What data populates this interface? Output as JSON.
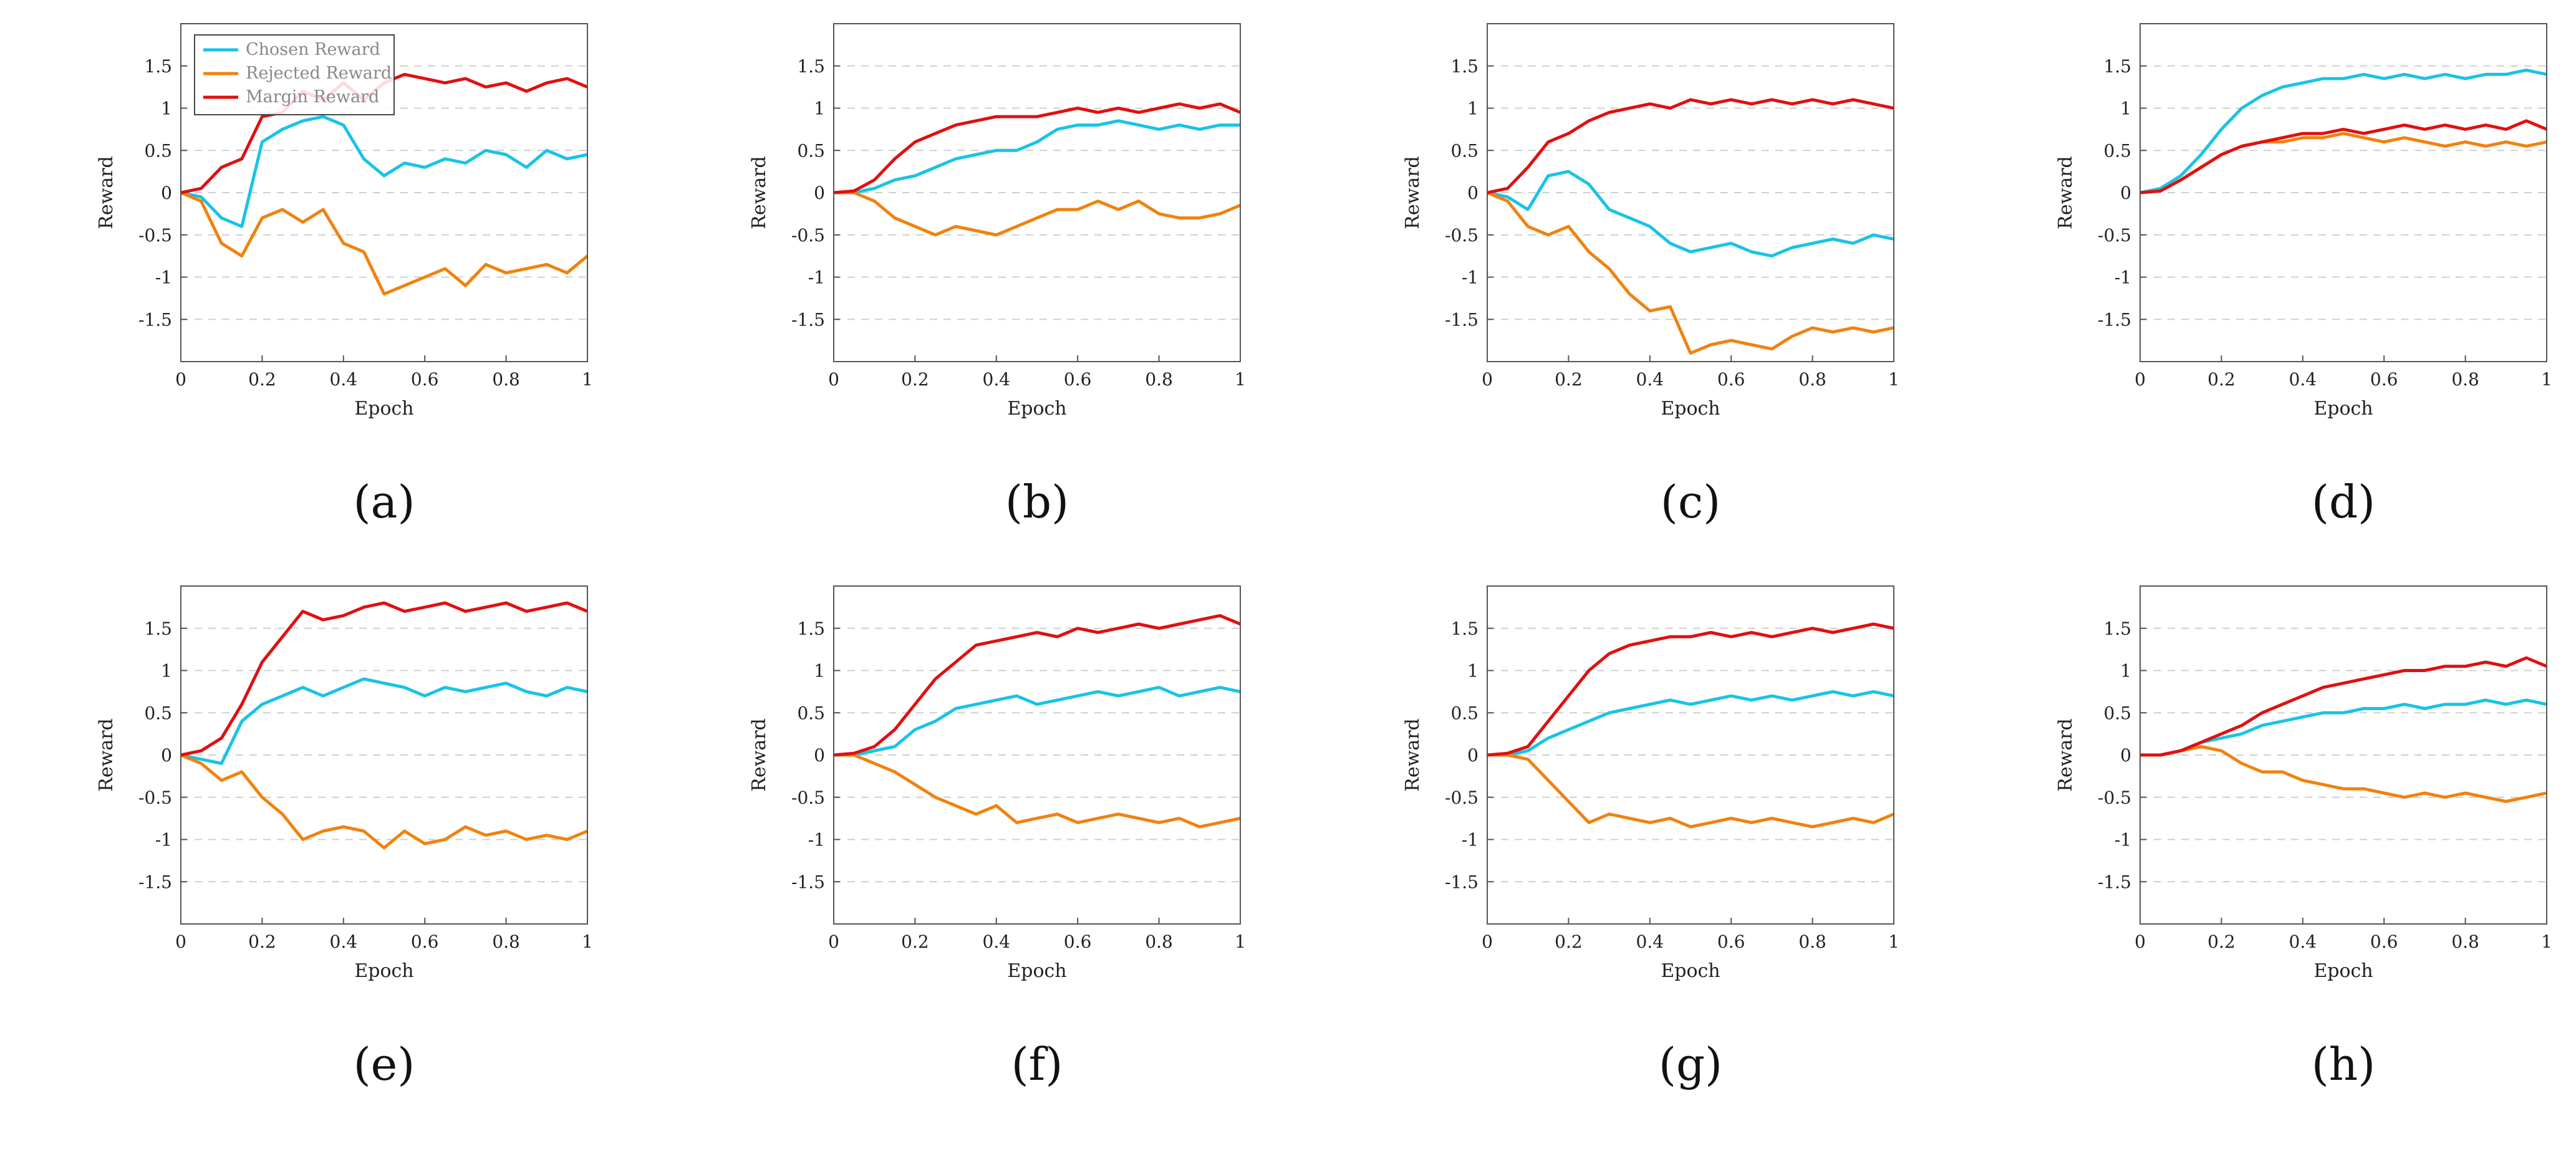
{
  "chart_data": [
    {
      "type": "line",
      "subfigure_label": "(a)",
      "xlabel": "Epoch",
      "ylabel": "Reward",
      "xlim": [
        0,
        1
      ],
      "ylim": [
        -2,
        2
      ],
      "xticks": [
        "0",
        "0.2",
        "0.4",
        "0.6",
        "0.8",
        "1"
      ],
      "yticks": [
        "-1.5",
        "-1",
        "-0.5",
        "0",
        "0.5",
        "1",
        "1.5"
      ],
      "grid": "horizontal dashed",
      "legend": "top-left",
      "x": [
        0,
        0.05,
        0.1,
        0.15,
        0.2,
        0.25,
        0.3,
        0.35,
        0.4,
        0.45,
        0.5,
        0.55,
        0.6,
        0.65,
        0.7,
        0.75,
        0.8,
        0.85,
        0.9,
        0.95,
        1.0
      ],
      "series": [
        {
          "name": "Chosen Reward",
          "color": "#19c3e6",
          "values": [
            0,
            -0.05,
            -0.3,
            -0.4,
            0.6,
            0.75,
            0.85,
            0.9,
            0.8,
            0.4,
            0.2,
            0.35,
            0.3,
            0.4,
            0.35,
            0.5,
            0.45,
            0.3,
            0.5,
            0.4,
            0.45
          ]
        },
        {
          "name": "Rejected Reward",
          "color": "#f0820f",
          "values": [
            0,
            -0.1,
            -0.6,
            -0.75,
            -0.3,
            -0.2,
            -0.35,
            -0.2,
            -0.6,
            -0.7,
            -1.2,
            -1.1,
            -1.0,
            -0.9,
            -1.1,
            -0.85,
            -0.95,
            -0.9,
            -0.85,
            -0.95,
            -0.75
          ]
        },
        {
          "name": "Margin Reward",
          "color": "#e01010",
          "values": [
            0,
            0.05,
            0.3,
            0.4,
            0.9,
            0.95,
            1.2,
            1.1,
            1.3,
            1.1,
            1.3,
            1.4,
            1.35,
            1.3,
            1.35,
            1.25,
            1.3,
            1.2,
            1.3,
            1.35,
            1.25
          ]
        }
      ]
    },
    {
      "type": "line",
      "subfigure_label": "(b)",
      "xlabel": "Epoch",
      "ylabel": "Reward",
      "xlim": [
        0,
        1
      ],
      "ylim": [
        -2,
        2
      ],
      "xticks": [
        "0",
        "0.2",
        "0.4",
        "0.6",
        "0.8",
        "1"
      ],
      "yticks": [
        "-1.5",
        "-1",
        "-0.5",
        "0",
        "0.5",
        "1",
        "1.5"
      ],
      "grid": "horizontal dashed",
      "x": [
        0,
        0.05,
        0.1,
        0.15,
        0.2,
        0.25,
        0.3,
        0.35,
        0.4,
        0.45,
        0.5,
        0.55,
        0.6,
        0.65,
        0.7,
        0.75,
        0.8,
        0.85,
        0.9,
        0.95,
        1.0
      ],
      "series": [
        {
          "name": "Chosen Reward",
          "color": "#19c3e6",
          "values": [
            0,
            0,
            0.05,
            0.15,
            0.2,
            0.3,
            0.4,
            0.45,
            0.5,
            0.5,
            0.6,
            0.75,
            0.8,
            0.8,
            0.85,
            0.8,
            0.75,
            0.8,
            0.75,
            0.8,
            0.8
          ]
        },
        {
          "name": "Rejected Reward",
          "color": "#f0820f",
          "values": [
            0,
            0,
            -0.1,
            -0.3,
            -0.4,
            -0.5,
            -0.4,
            -0.45,
            -0.5,
            -0.4,
            -0.3,
            -0.2,
            -0.2,
            -0.1,
            -0.2,
            -0.1,
            -0.25,
            -0.3,
            -0.3,
            -0.25,
            -0.15
          ]
        },
        {
          "name": "Margin Reward",
          "color": "#e01010",
          "values": [
            0,
            0.02,
            0.15,
            0.4,
            0.6,
            0.7,
            0.8,
            0.85,
            0.9,
            0.9,
            0.9,
            0.95,
            1.0,
            0.95,
            1.0,
            0.95,
            1.0,
            1.05,
            1.0,
            1.05,
            0.95
          ]
        }
      ]
    },
    {
      "type": "line",
      "subfigure_label": "(c)",
      "xlabel": "Epoch",
      "ylabel": "Reward",
      "xlim": [
        0,
        1
      ],
      "ylim": [
        -2,
        2
      ],
      "xticks": [
        "0",
        "0.2",
        "0.4",
        "0.6",
        "0.8",
        "1"
      ],
      "yticks": [
        "-1.5",
        "-1",
        "-0.5",
        "0",
        "0.5",
        "1",
        "1.5"
      ],
      "grid": "horizontal dashed",
      "x": [
        0,
        0.05,
        0.1,
        0.15,
        0.2,
        0.25,
        0.3,
        0.35,
        0.4,
        0.45,
        0.5,
        0.55,
        0.6,
        0.65,
        0.7,
        0.75,
        0.8,
        0.85,
        0.9,
        0.95,
        1.0
      ],
      "series": [
        {
          "name": "Chosen Reward",
          "color": "#19c3e6",
          "values": [
            0,
            -0.05,
            -0.2,
            0.2,
            0.25,
            0.1,
            -0.2,
            -0.3,
            -0.4,
            -0.6,
            -0.7,
            -0.65,
            -0.6,
            -0.7,
            -0.75,
            -0.65,
            -0.6,
            -0.55,
            -0.6,
            -0.5,
            -0.55
          ]
        },
        {
          "name": "Rejected Reward",
          "color": "#f0820f",
          "values": [
            0,
            -0.1,
            -0.4,
            -0.5,
            -0.4,
            -0.7,
            -0.9,
            -1.2,
            -1.4,
            -1.35,
            -1.9,
            -1.8,
            -1.75,
            -1.8,
            -1.85,
            -1.7,
            -1.6,
            -1.65,
            -1.6,
            -1.65,
            -1.6
          ]
        },
        {
          "name": "Margin Reward",
          "color": "#e01010",
          "values": [
            0,
            0.05,
            0.3,
            0.6,
            0.7,
            0.85,
            0.95,
            1.0,
            1.05,
            1.0,
            1.1,
            1.05,
            1.1,
            1.05,
            1.1,
            1.05,
            1.1,
            1.05,
            1.1,
            1.05,
            1.0
          ]
        }
      ]
    },
    {
      "type": "line",
      "subfigure_label": "(d)",
      "xlabel": "Epoch",
      "ylabel": "Reward",
      "xlim": [
        0,
        1
      ],
      "ylim": [
        -2,
        2
      ],
      "xticks": [
        "0",
        "0.2",
        "0.4",
        "0.6",
        "0.8",
        "1"
      ],
      "yticks": [
        "-1.5",
        "-1",
        "-0.5",
        "0",
        "0.5",
        "1",
        "1.5"
      ],
      "grid": "horizontal dashed",
      "x": [
        0,
        0.05,
        0.1,
        0.15,
        0.2,
        0.25,
        0.3,
        0.35,
        0.4,
        0.45,
        0.5,
        0.55,
        0.6,
        0.65,
        0.7,
        0.75,
        0.8,
        0.85,
        0.9,
        0.95,
        1.0
      ],
      "series": [
        {
          "name": "Chosen Reward",
          "color": "#19c3e6",
          "values": [
            0,
            0.05,
            0.2,
            0.45,
            0.75,
            1.0,
            1.15,
            1.25,
            1.3,
            1.35,
            1.35,
            1.4,
            1.35,
            1.4,
            1.35,
            1.4,
            1.35,
            1.4,
            1.4,
            1.45,
            1.4
          ]
        },
        {
          "name": "Rejected Reward",
          "color": "#f0820f",
          "values": [
            0,
            0.02,
            0.15,
            0.3,
            0.45,
            0.55,
            0.6,
            0.6,
            0.65,
            0.65,
            0.7,
            0.65,
            0.6,
            0.65,
            0.6,
            0.55,
            0.6,
            0.55,
            0.6,
            0.55,
            0.6
          ]
        },
        {
          "name": "Margin Reward",
          "color": "#e01010",
          "values": [
            0,
            0.02,
            0.15,
            0.3,
            0.45,
            0.55,
            0.6,
            0.65,
            0.7,
            0.7,
            0.75,
            0.7,
            0.75,
            0.8,
            0.75,
            0.8,
            0.75,
            0.8,
            0.75,
            0.85,
            0.75
          ]
        }
      ]
    },
    {
      "type": "line",
      "subfigure_label": "(e)",
      "xlabel": "Epoch",
      "ylabel": "Reward",
      "xlim": [
        0,
        1
      ],
      "ylim": [
        -2,
        2
      ],
      "xticks": [
        "0",
        "0.2",
        "0.4",
        "0.6",
        "0.8",
        "1"
      ],
      "yticks": [
        "-1.5",
        "-1",
        "-0.5",
        "0",
        "0.5",
        "1",
        "1.5"
      ],
      "grid": "horizontal dashed",
      "x": [
        0,
        0.05,
        0.1,
        0.15,
        0.2,
        0.25,
        0.3,
        0.35,
        0.4,
        0.45,
        0.5,
        0.55,
        0.6,
        0.65,
        0.7,
        0.75,
        0.8,
        0.85,
        0.9,
        0.95,
        1.0
      ],
      "series": [
        {
          "name": "Chosen Reward",
          "color": "#19c3e6",
          "values": [
            0,
            -0.05,
            -0.1,
            0.4,
            0.6,
            0.7,
            0.8,
            0.7,
            0.8,
            0.9,
            0.85,
            0.8,
            0.7,
            0.8,
            0.75,
            0.8,
            0.85,
            0.75,
            0.7,
            0.8,
            0.75
          ]
        },
        {
          "name": "Rejected Reward",
          "color": "#f0820f",
          "values": [
            0,
            -0.1,
            -0.3,
            -0.2,
            -0.5,
            -0.7,
            -1.0,
            -0.9,
            -0.85,
            -0.9,
            -1.1,
            -0.9,
            -1.05,
            -1.0,
            -0.85,
            -0.95,
            -0.9,
            -1.0,
            -0.95,
            -1.0,
            -0.9
          ]
        },
        {
          "name": "Margin Reward",
          "color": "#e01010",
          "values": [
            0,
            0.05,
            0.2,
            0.6,
            1.1,
            1.4,
            1.7,
            1.6,
            1.65,
            1.75,
            1.8,
            1.7,
            1.75,
            1.8,
            1.7,
            1.75,
            1.8,
            1.7,
            1.75,
            1.8,
            1.7
          ]
        }
      ]
    },
    {
      "type": "line",
      "subfigure_label": "(f)",
      "xlabel": "Epoch",
      "ylabel": "Reward",
      "xlim": [
        0,
        1
      ],
      "ylim": [
        -2,
        2
      ],
      "xticks": [
        "0",
        "0.2",
        "0.4",
        "0.6",
        "0.8",
        "1"
      ],
      "yticks": [
        "-1.5",
        "-1",
        "-0.5",
        "0",
        "0.5",
        "1",
        "1.5"
      ],
      "grid": "horizontal dashed",
      "x": [
        0,
        0.05,
        0.1,
        0.15,
        0.2,
        0.25,
        0.3,
        0.35,
        0.4,
        0.45,
        0.5,
        0.55,
        0.6,
        0.65,
        0.7,
        0.75,
        0.8,
        0.85,
        0.9,
        0.95,
        1.0
      ],
      "series": [
        {
          "name": "Chosen Reward",
          "color": "#19c3e6",
          "values": [
            0,
            0,
            0.05,
            0.1,
            0.3,
            0.4,
            0.55,
            0.6,
            0.65,
            0.7,
            0.6,
            0.65,
            0.7,
            0.75,
            0.7,
            0.75,
            0.8,
            0.7,
            0.75,
            0.8,
            0.75
          ]
        },
        {
          "name": "Rejected Reward",
          "color": "#f0820f",
          "values": [
            0,
            0,
            -0.1,
            -0.2,
            -0.35,
            -0.5,
            -0.6,
            -0.7,
            -0.6,
            -0.8,
            -0.75,
            -0.7,
            -0.8,
            -0.75,
            -0.7,
            -0.75,
            -0.8,
            -0.75,
            -0.85,
            -0.8,
            -0.75
          ]
        },
        {
          "name": "Margin Reward",
          "color": "#e01010",
          "values": [
            0,
            0.02,
            0.1,
            0.3,
            0.6,
            0.9,
            1.1,
            1.3,
            1.35,
            1.4,
            1.45,
            1.4,
            1.5,
            1.45,
            1.5,
            1.55,
            1.5,
            1.55,
            1.6,
            1.65,
            1.55
          ]
        }
      ]
    },
    {
      "type": "line",
      "subfigure_label": "(g)",
      "xlabel": "Epoch",
      "ylabel": "Reward",
      "xlim": [
        0,
        1
      ],
      "ylim": [
        -2,
        2
      ],
      "xticks": [
        "0",
        "0.2",
        "0.4",
        "0.6",
        "0.8",
        "1"
      ],
      "yticks": [
        "-1.5",
        "-1",
        "-0.5",
        "0",
        "0.5",
        "1",
        "1.5"
      ],
      "grid": "horizontal dashed",
      "x": [
        0,
        0.05,
        0.1,
        0.15,
        0.2,
        0.25,
        0.3,
        0.35,
        0.4,
        0.45,
        0.5,
        0.55,
        0.6,
        0.65,
        0.7,
        0.75,
        0.8,
        0.85,
        0.9,
        0.95,
        1.0
      ],
      "series": [
        {
          "name": "Chosen Reward",
          "color": "#19c3e6",
          "values": [
            0,
            0,
            0.05,
            0.2,
            0.3,
            0.4,
            0.5,
            0.55,
            0.6,
            0.65,
            0.6,
            0.65,
            0.7,
            0.65,
            0.7,
            0.65,
            0.7,
            0.75,
            0.7,
            0.75,
            0.7
          ]
        },
        {
          "name": "Rejected Reward",
          "color": "#f0820f",
          "values": [
            0,
            0,
            -0.05,
            -0.3,
            -0.55,
            -0.8,
            -0.7,
            -0.75,
            -0.8,
            -0.75,
            -0.85,
            -0.8,
            -0.75,
            -0.8,
            -0.75,
            -0.8,
            -0.85,
            -0.8,
            -0.75,
            -0.8,
            -0.7
          ]
        },
        {
          "name": "Margin Reward",
          "color": "#e01010",
          "values": [
            0,
            0.02,
            0.1,
            0.4,
            0.7,
            1.0,
            1.2,
            1.3,
            1.35,
            1.4,
            1.4,
            1.45,
            1.4,
            1.45,
            1.4,
            1.45,
            1.5,
            1.45,
            1.5,
            1.55,
            1.5
          ]
        }
      ]
    },
    {
      "type": "line",
      "subfigure_label": "(h)",
      "xlabel": "Epoch",
      "ylabel": "Reward",
      "xlim": [
        0,
        1
      ],
      "ylim": [
        -2,
        2
      ],
      "xticks": [
        "0",
        "0.2",
        "0.4",
        "0.6",
        "0.8",
        "1"
      ],
      "yticks": [
        "-1.5",
        "-1",
        "-0.5",
        "0",
        "0.5",
        "1",
        "1.5"
      ],
      "grid": "horizontal dashed",
      "x": [
        0,
        0.05,
        0.1,
        0.15,
        0.2,
        0.25,
        0.3,
        0.35,
        0.4,
        0.45,
        0.5,
        0.55,
        0.6,
        0.65,
        0.7,
        0.75,
        0.8,
        0.85,
        0.9,
        0.95,
        1.0
      ],
      "series": [
        {
          "name": "Chosen Reward",
          "color": "#19c3e6",
          "values": [
            0,
            0,
            0.05,
            0.15,
            0.2,
            0.25,
            0.35,
            0.4,
            0.45,
            0.5,
            0.5,
            0.55,
            0.55,
            0.6,
            0.55,
            0.6,
            0.6,
            0.65,
            0.6,
            0.65,
            0.6
          ]
        },
        {
          "name": "Rejected Reward",
          "color": "#f0820f",
          "values": [
            0,
            0,
            0.05,
            0.1,
            0.05,
            -0.1,
            -0.2,
            -0.2,
            -0.3,
            -0.35,
            -0.4,
            -0.4,
            -0.45,
            -0.5,
            -0.45,
            -0.5,
            -0.45,
            -0.5,
            -0.55,
            -0.5,
            -0.45
          ]
        },
        {
          "name": "Margin Reward",
          "color": "#e01010",
          "values": [
            0,
            0,
            0.05,
            0.15,
            0.25,
            0.35,
            0.5,
            0.6,
            0.7,
            0.8,
            0.85,
            0.9,
            0.95,
            1.0,
            1.0,
            1.05,
            1.05,
            1.1,
            1.05,
            1.15,
            1.05
          ]
        }
      ]
    }
  ]
}
